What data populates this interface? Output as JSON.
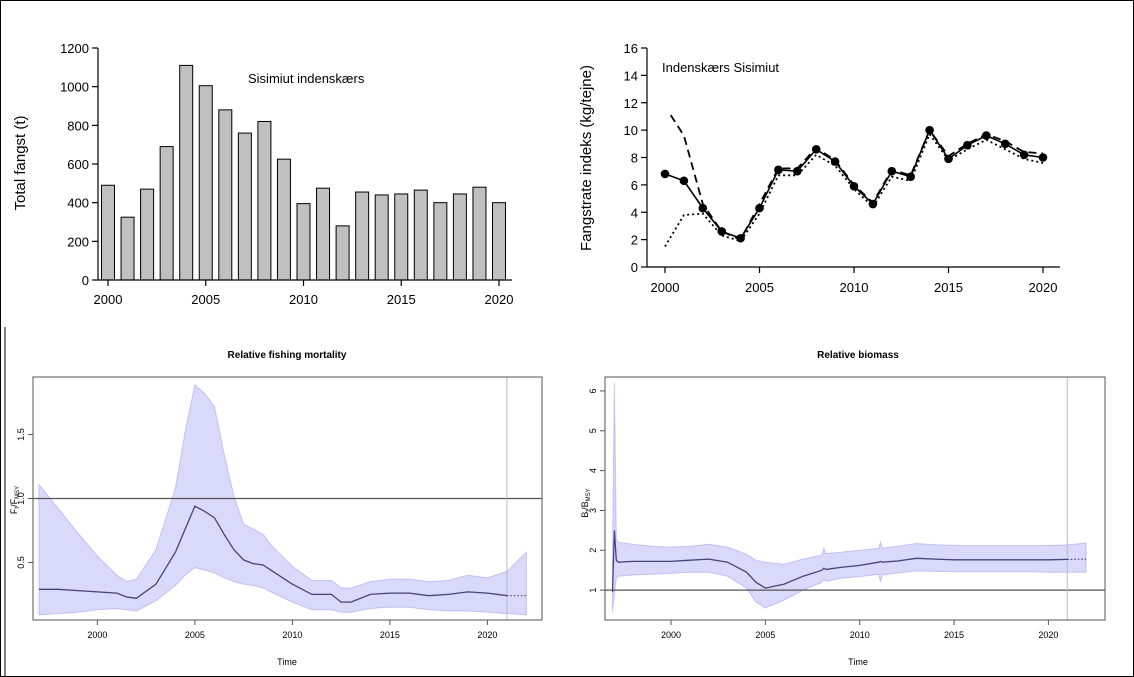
{
  "chart_data": [
    {
      "id": "catch",
      "type": "bar",
      "annotation": "Sisimiut indenskærs",
      "ylabel": "Total fangst (t)",
      "xlabel": "",
      "x": [
        2000,
        2001,
        2002,
        2003,
        2004,
        2005,
        2006,
        2007,
        2008,
        2009,
        2010,
        2011,
        2012,
        2013,
        2014,
        2015,
        2016,
        2017,
        2018,
        2019,
        2020
      ],
      "values": [
        490,
        325,
        470,
        690,
        1110,
        1005,
        880,
        760,
        820,
        625,
        395,
        475,
        280,
        455,
        440,
        445,
        465,
        400,
        445,
        480,
        400
      ],
      "ylim": [
        0,
        1200
      ],
      "yticks": [
        0,
        200,
        400,
        600,
        800,
        1000,
        1200
      ],
      "xticks": [
        2000,
        2005,
        2010,
        2015,
        2020
      ],
      "bar_color": "#c0c0c0"
    },
    {
      "id": "cpue",
      "type": "line",
      "annotation": "Indenskærs Sisimiut",
      "ylabel": "Fangstrate indeks (kg/tejne)",
      "xlabel": "",
      "ylim": [
        0,
        16
      ],
      "yticks": [
        0,
        2,
        4,
        6,
        8,
        10,
        12,
        14,
        16
      ],
      "xticks": [
        2000,
        2005,
        2010,
        2015,
        2020
      ],
      "xlim": [
        1999,
        2021
      ],
      "series": [
        {
          "style": "solid-points",
          "x": [
            2000,
            2001,
            2002,
            2003,
            2004,
            2005,
            2006,
            2007,
            2008,
            2009,
            2010,
            2011,
            2012,
            2013,
            2014,
            2015,
            2016,
            2017,
            2018,
            2019,
            2020
          ],
          "y": [
            6.8,
            6.3,
            4.3,
            2.6,
            2.1,
            4.3,
            7.1,
            7.0,
            8.6,
            7.7,
            5.9,
            4.6,
            7.0,
            6.6,
            10.0,
            7.9,
            8.9,
            9.6,
            9.0,
            8.2,
            8.0
          ]
        },
        {
          "style": "dashed",
          "x": [
            2000.3,
            2001,
            2002,
            2003,
            2004,
            2005,
            2006,
            2007,
            2008,
            2009,
            2010,
            2011,
            2012,
            2013,
            2014,
            2015,
            2016,
            2017,
            2018,
            2019,
            2020
          ],
          "y": [
            11.1,
            9.6,
            4.6,
            2.6,
            2.0,
            4.6,
            7.2,
            7.2,
            8.7,
            7.8,
            6.0,
            4.7,
            7.1,
            6.7,
            10.0,
            8.1,
            9.0,
            9.7,
            9.2,
            8.4,
            8.3
          ]
        },
        {
          "style": "dotted",
          "x": [
            2000,
            2001,
            2002,
            2003,
            2004,
            2005,
            2006,
            2007,
            2008,
            2009,
            2010,
            2011,
            2012,
            2013,
            2014,
            2015,
            2016,
            2017,
            2018,
            2019,
            2020
          ],
          "y": [
            1.5,
            3.8,
            3.9,
            2.3,
            1.9,
            3.9,
            6.7,
            6.7,
            8.2,
            7.4,
            5.7,
            4.4,
            6.6,
            6.3,
            9.7,
            7.8,
            8.6,
            9.3,
            8.6,
            7.9,
            7.6
          ]
        }
      ]
    },
    {
      "id": "relF",
      "type": "area",
      "title": "Relative fishing mortality",
      "xlabel": "Time",
      "ylabel_main": "F",
      "ylabel_sub1": "t",
      "ylabel_sep": "/F",
      "ylabel_sub2": "MSY",
      "xlim": [
        1996.7,
        2022.8
      ],
      "ylim": [
        0.05,
        1.95
      ],
      "yticks": [
        0.5,
        1.0,
        1.5
      ],
      "xticks": [
        2000,
        2005,
        2010,
        2015,
        2020
      ],
      "refline": 1.0,
      "vline": 2021,
      "band_color": "#8888ee",
      "line_color": "#44447a",
      "x": [
        1997,
        1998,
        1999,
        2000,
        2001,
        2001.5,
        2002,
        2003,
        2004,
        2004.5,
        2005,
        2005.5,
        2006,
        2006.5,
        2007,
        2007.5,
        2008,
        2008.5,
        2009,
        2010,
        2011,
        2012,
        2012.5,
        2013,
        2014,
        2015,
        2016,
        2017,
        2018,
        2019,
        2020,
        2021,
        2022
      ],
      "mid": [
        0.29,
        0.29,
        0.28,
        0.27,
        0.26,
        0.23,
        0.22,
        0.33,
        0.58,
        0.76,
        0.94,
        0.9,
        0.85,
        0.72,
        0.6,
        0.52,
        0.49,
        0.48,
        0.43,
        0.33,
        0.25,
        0.25,
        0.19,
        0.19,
        0.25,
        0.26,
        0.26,
        0.24,
        0.25,
        0.27,
        0.26,
        0.24,
        0.24
      ],
      "lo": [
        0.09,
        0.1,
        0.11,
        0.13,
        0.14,
        0.13,
        0.12,
        0.2,
        0.32,
        0.4,
        0.46,
        0.44,
        0.42,
        0.38,
        0.35,
        0.33,
        0.32,
        0.3,
        0.26,
        0.19,
        0.13,
        0.13,
        0.11,
        0.11,
        0.14,
        0.15,
        0.15,
        0.13,
        0.12,
        0.12,
        0.11,
        0.1,
        0.09
      ],
      "hi": [
        1.11,
        0.92,
        0.73,
        0.55,
        0.4,
        0.35,
        0.37,
        0.6,
        1.08,
        1.52,
        1.89,
        1.82,
        1.72,
        1.35,
        1.02,
        0.8,
        0.76,
        0.72,
        0.62,
        0.47,
        0.36,
        0.36,
        0.3,
        0.3,
        0.35,
        0.37,
        0.37,
        0.35,
        0.36,
        0.4,
        0.38,
        0.43,
        0.58
      ],
      "dotted_from": 2021
    },
    {
      "id": "relB",
      "type": "area",
      "title": "Relative biomass",
      "xlabel": "Time",
      "ylabel_main": "B",
      "ylabel_sub1": "t",
      "ylabel_sep": "/B",
      "ylabel_sub2": "MSY",
      "xlim": [
        1996.5,
        2023
      ],
      "ylim": [
        0.25,
        6.35
      ],
      "yticks": [
        1,
        2,
        3,
        4,
        5,
        6
      ],
      "xticks": [
        2000,
        2005,
        2010,
        2015,
        2020
      ],
      "refline": 1.0,
      "vline": 2021,
      "band_color": "#8888ee",
      "line_color": "#44447a",
      "x": [
        1996.9,
        1997.0,
        1997.1,
        1997.2,
        1998,
        1999,
        2000,
        2001,
        2002,
        2003,
        2004,
        2004.5,
        2005,
        2006,
        2007,
        2008,
        2008.1,
        2008.2,
        2009,
        2010,
        2011,
        2011.1,
        2011.2,
        2012,
        2013,
        2014,
        2015,
        2016,
        2017,
        2018,
        2019,
        2020,
        2021,
        2022
      ],
      "mid": [
        0.95,
        2.5,
        1.75,
        1.7,
        1.72,
        1.72,
        1.72,
        1.75,
        1.78,
        1.7,
        1.45,
        1.2,
        1.05,
        1.15,
        1.35,
        1.5,
        1.55,
        1.52,
        1.57,
        1.62,
        1.7,
        1.72,
        1.7,
        1.73,
        1.8,
        1.78,
        1.76,
        1.76,
        1.76,
        1.76,
        1.76,
        1.76,
        1.77,
        1.78
      ],
      "lo": [
        0.45,
        0.9,
        1.3,
        1.35,
        1.38,
        1.4,
        1.42,
        1.45,
        1.45,
        1.35,
        1.05,
        0.7,
        0.55,
        0.75,
        1.0,
        1.2,
        1.28,
        1.22,
        1.3,
        1.34,
        1.4,
        1.22,
        1.38,
        1.43,
        1.48,
        1.47,
        1.46,
        1.46,
        1.46,
        1.46,
        1.46,
        1.45,
        1.45,
        1.45
      ],
      "hi": [
        1.8,
        6.2,
        2.3,
        2.2,
        2.15,
        2.1,
        2.08,
        2.1,
        2.15,
        2.08,
        1.9,
        1.75,
        1.7,
        1.65,
        1.78,
        1.88,
        2.05,
        1.92,
        1.95,
        2.0,
        2.05,
        2.2,
        2.05,
        2.1,
        2.17,
        2.14,
        2.12,
        2.12,
        2.12,
        2.12,
        2.12,
        2.12,
        2.14,
        2.18
      ],
      "dotted_from": 2021
    }
  ]
}
